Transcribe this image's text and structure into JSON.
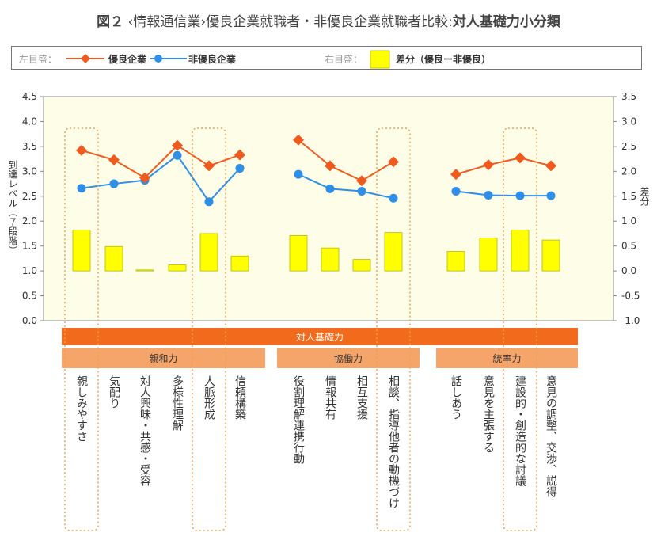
{
  "title": {
    "figure_no": "図２",
    "main": "‹情報通信業›優良企業就職者・非優良企業就職者比較:",
    "sub": "対人基礎力小分類"
  },
  "legend": {
    "left_axis_label": "左目盛：",
    "right_axis_label": "右目盛：",
    "series_excellent": "優良企業",
    "series_non_excellent": "非優良企業",
    "series_difference": "差分（優良ー非優良）"
  },
  "colors": {
    "excellent": "#f05a1e",
    "non_excellent": "#2f8fe6",
    "difference_fill": "#ffff00",
    "difference_stroke": "#b8b800",
    "plot_bg": "#fefee8",
    "category_bar": "#f26a1b",
    "group_bar": "#f5a46a",
    "highlight_dash": "#f0a050"
  },
  "chart_data": {
    "type": "bar+line",
    "left_axis": {
      "label": "到達レベル（７段階）",
      "ylim": [
        0,
        4.5
      ],
      "ticks": [
        "0.0",
        "0.5",
        "1.0",
        "1.5",
        "2.0",
        "2.5",
        "3.0",
        "3.5",
        "4.0",
        "4.5"
      ]
    },
    "right_axis": {
      "label": "差分",
      "ylim": [
        -1.0,
        3.5
      ],
      "ticks": [
        "-1.0",
        "-0.5",
        "0.0",
        "0.5",
        "1.0",
        "1.5",
        "2.0",
        "2.5",
        "3.0",
        "3.5"
      ]
    },
    "category_header": "対人基礎力",
    "groups": [
      {
        "name": "親和力",
        "items": [
          "親しみやすさ",
          "気配り",
          "対人興味・共感・受容",
          "多様性理解",
          "人脈形成",
          "信頼構築"
        ]
      },
      {
        "name": "協働力",
        "items": [
          "役割理解連携行動",
          "情報共有",
          "相互支援",
          "相談、指導他者の動機づけ"
        ]
      },
      {
        "name": "統率力",
        "items": [
          "話しあう",
          "意見を主張する",
          "建設的・創造的な討議",
          "意見の調整、交渉、説得"
        ]
      }
    ],
    "series": [
      {
        "name": "優良企業",
        "axis": "left",
        "kind": "line",
        "groups": [
          [
            3.42,
            3.23,
            2.87,
            3.52,
            3.11,
            3.33
          ],
          [
            3.63,
            3.11,
            2.81,
            3.19
          ],
          [
            2.94,
            3.13,
            3.27,
            3.11
          ]
        ]
      },
      {
        "name": "非優良企業",
        "axis": "left",
        "kind": "line",
        "groups": [
          [
            2.66,
            2.75,
            2.82,
            3.32,
            2.39,
            3.06
          ],
          [
            2.94,
            2.65,
            2.6,
            2.46
          ],
          [
            2.6,
            2.52,
            2.51,
            2.51
          ]
        ]
      },
      {
        "name": "差分（優良ー非優良）",
        "axis": "right",
        "kind": "bar",
        "groups": [
          [
            0.82,
            0.49,
            0.02,
            0.12,
            0.75,
            0.3
          ],
          [
            0.71,
            0.46,
            0.23,
            0.77
          ],
          [
            0.39,
            0.66,
            0.82,
            0.62
          ]
        ]
      }
    ],
    "highlighted_items": [
      "親しみやすさ",
      "人脈形成",
      "相談、指導他者の動機づけ",
      "建設的・創造的な討議"
    ],
    "grid": false,
    "legend_position": "top"
  }
}
